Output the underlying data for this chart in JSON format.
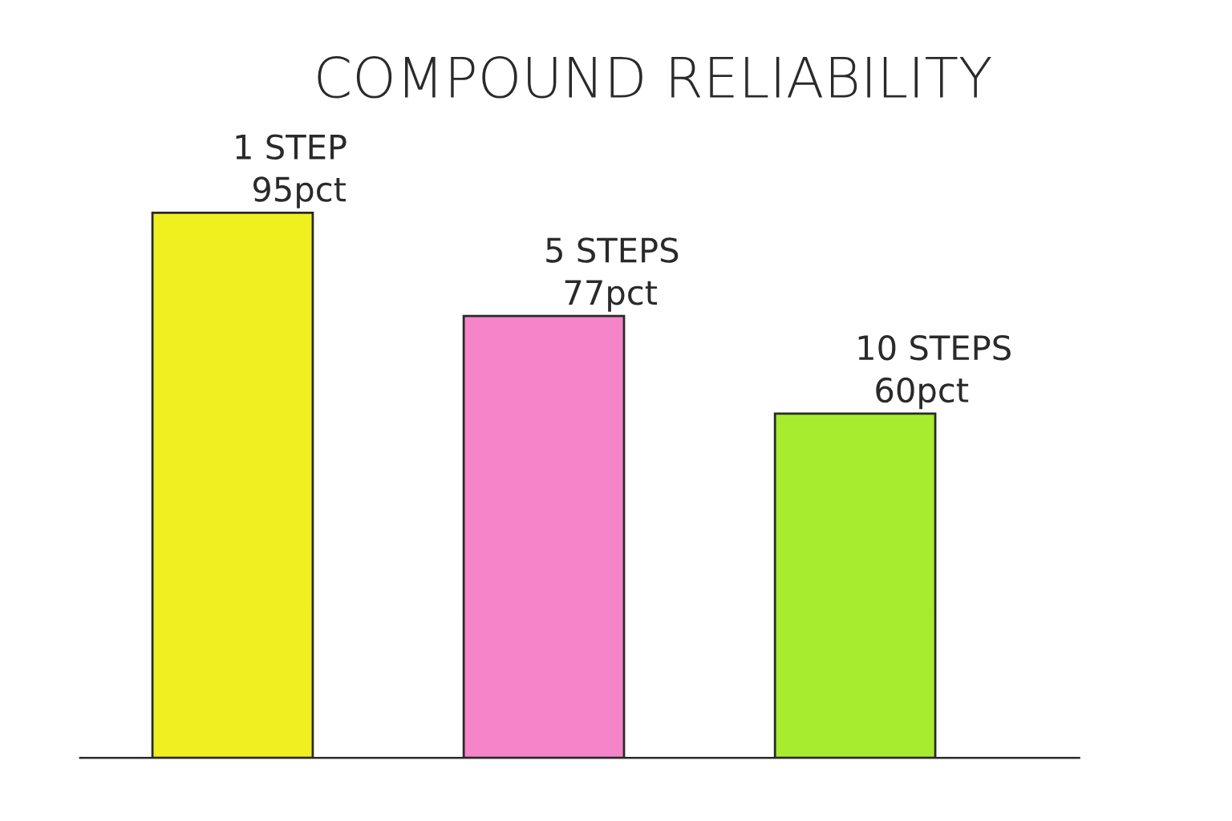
{
  "chart_data": {
    "type": "bar",
    "title": "COMPOUND RELIABILITY",
    "categories": [
      "1 STEP",
      "5 STEPS",
      "10 STEPS"
    ],
    "values": [
      95,
      77,
      60
    ],
    "value_labels": [
      "95pct",
      "77pct",
      "60pct"
    ],
    "colors": [
      "#f0f020",
      "#f585c8",
      "#a8ec30"
    ],
    "tick_labels": false
  }
}
